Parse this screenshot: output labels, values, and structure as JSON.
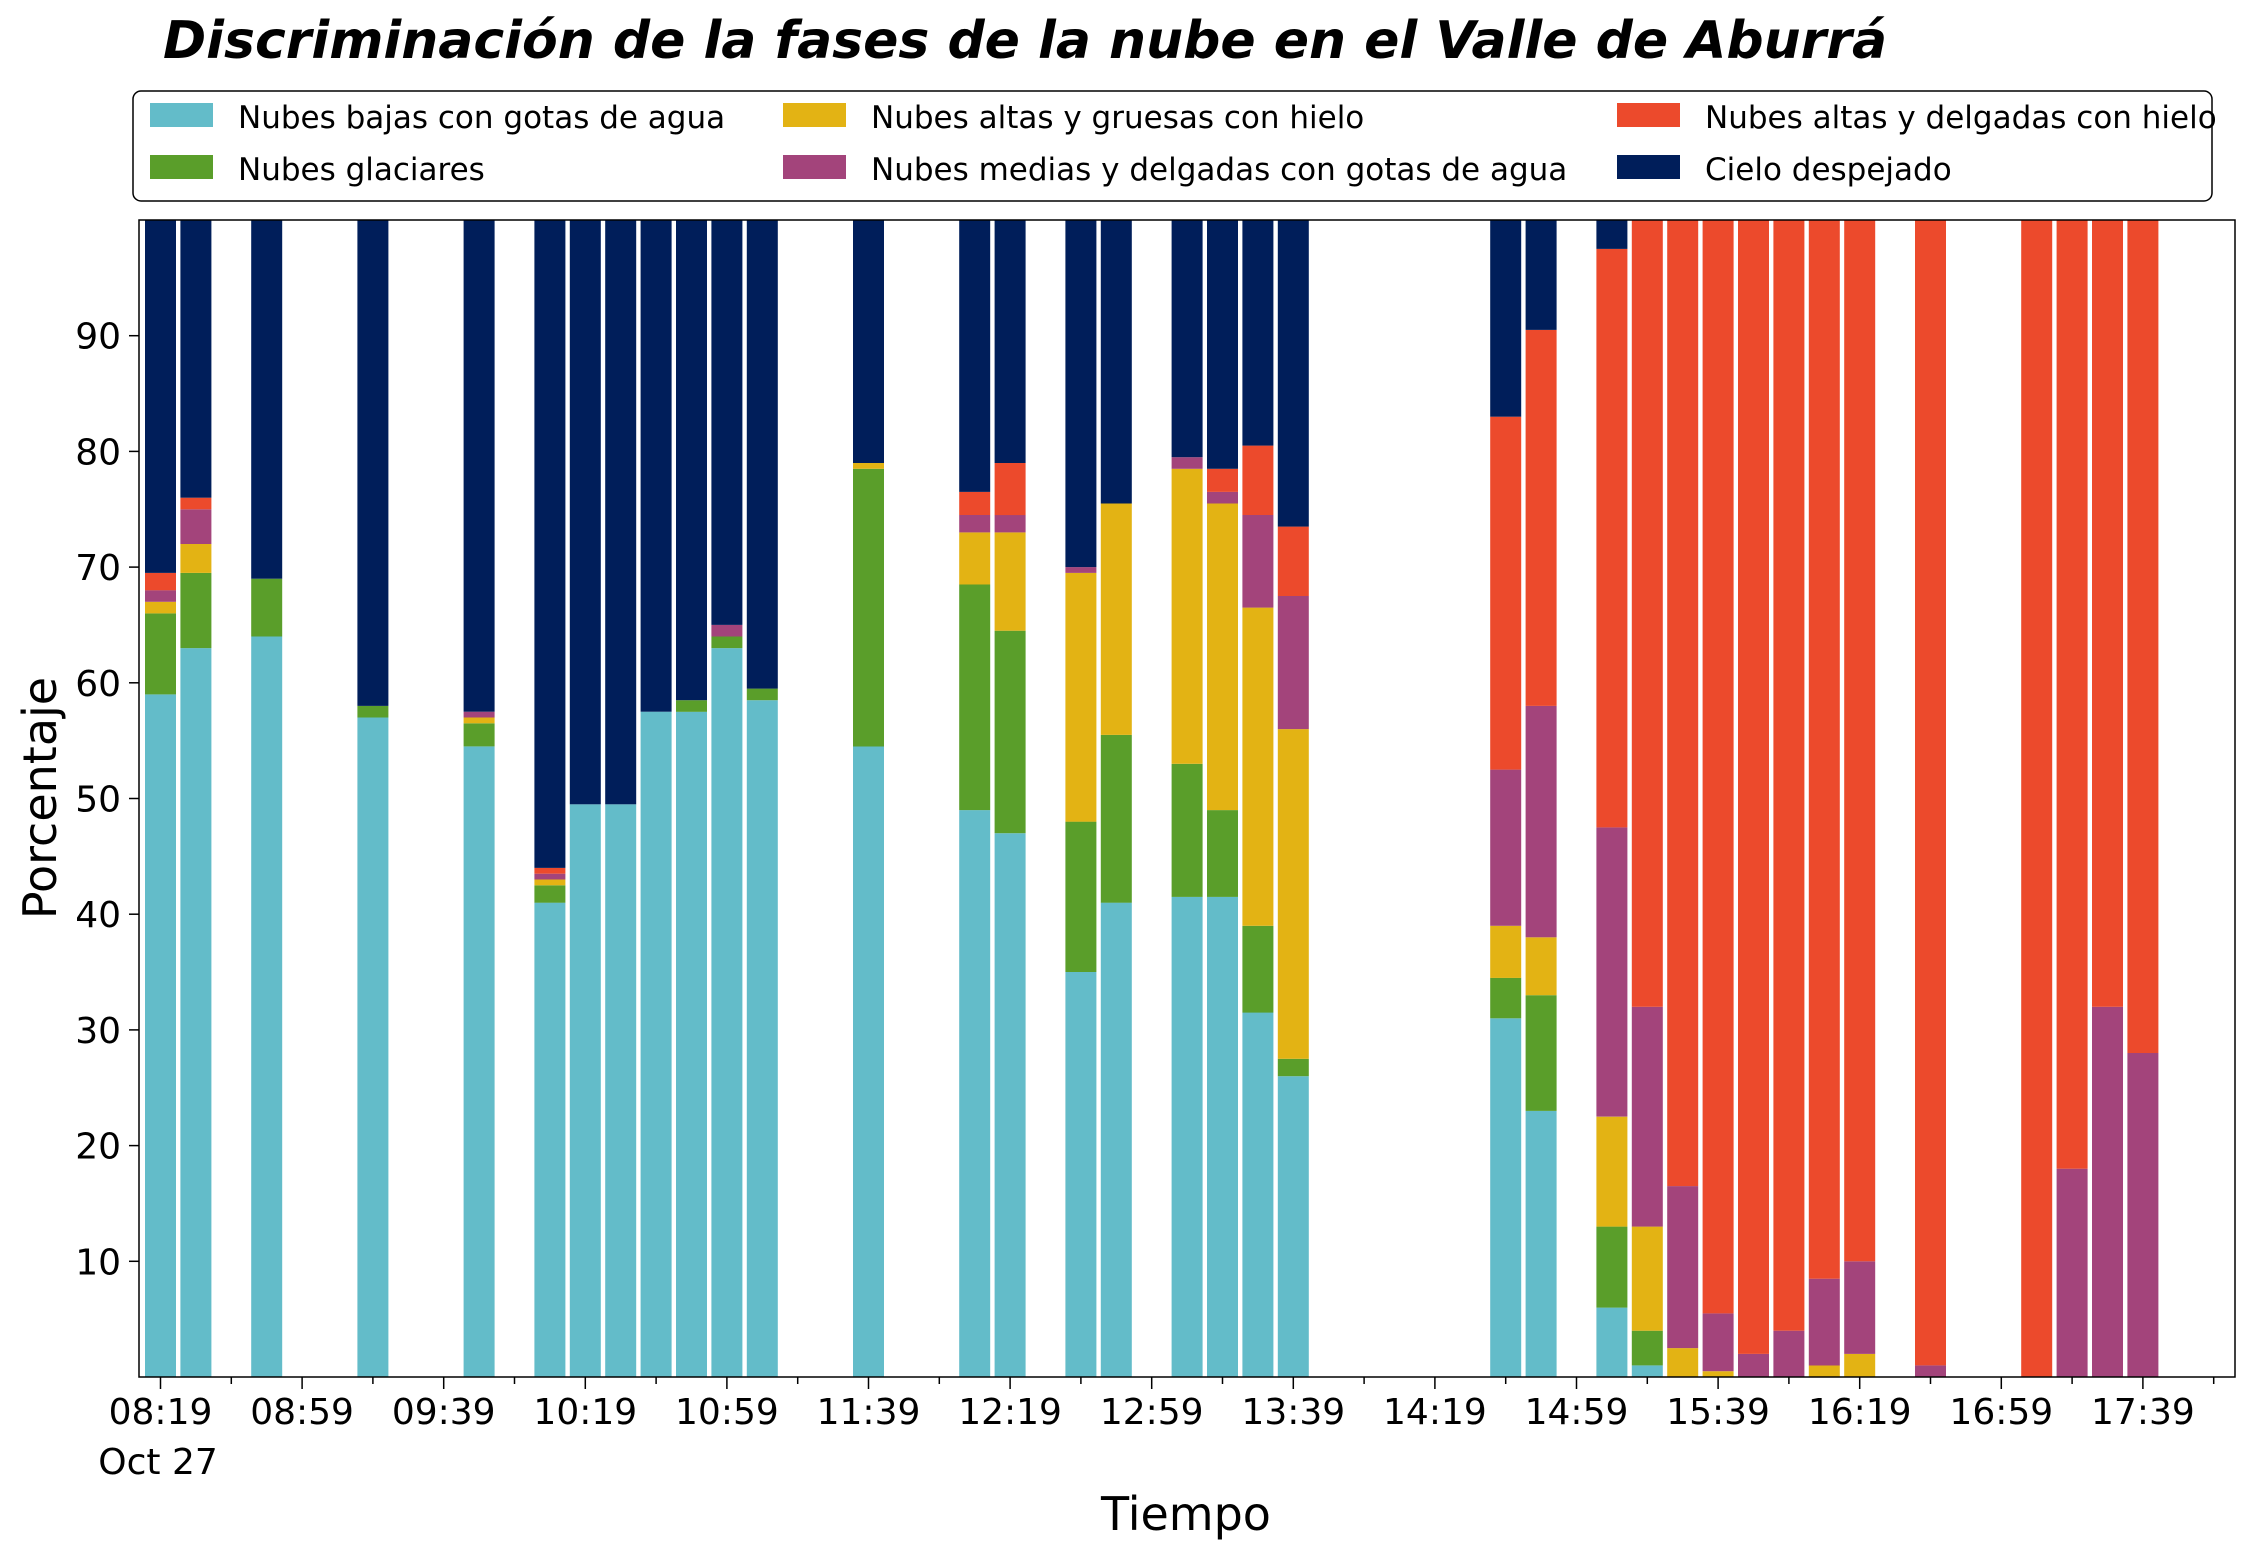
{
  "chart_data": {
    "type": "bar",
    "stacked": true,
    "title": "Discriminación de la fases de la nube en el Valle de Aburrá",
    "xlabel": "Tiempo",
    "ylabel": "Porcentaje",
    "ylim": [
      0,
      100
    ],
    "y_ticks": [
      10,
      20,
      30,
      40,
      50,
      60,
      70,
      80,
      90
    ],
    "x_ticks": [
      "08:19",
      "08:59",
      "09:39",
      "10:19",
      "10:59",
      "11:39",
      "12:19",
      "12:59",
      "13:39",
      "14:19",
      "14:59",
      "15:39",
      "16:19",
      "16:59",
      "17:39"
    ],
    "x_tick_sublabel": "Oct 27",
    "x_start": "08:19",
    "x_end": "17:59",
    "interval_minutes": 10,
    "grid": false,
    "legend_position": "top",
    "x": [
      "08:19",
      "08:29",
      "08:49",
      "09:19",
      "09:49",
      "10:09",
      "10:19",
      "10:29",
      "10:39",
      "10:49",
      "10:59",
      "11:09",
      "11:39",
      "12:09",
      "12:19",
      "12:39",
      "12:49",
      "13:09",
      "13:19",
      "13:29",
      "13:39",
      "14:39",
      "14:49",
      "15:09",
      "15:19",
      "15:29",
      "15:39",
      "15:49",
      "15:59",
      "16:09",
      "16:19",
      "16:39",
      "17:09",
      "17:19",
      "17:29",
      "17:39"
    ],
    "series": [
      {
        "name": "Nubes bajas con gotas de agua",
        "color": "#63BCC9",
        "values": [
          59,
          63,
          64,
          57,
          54.5,
          41,
          49.5,
          49.5,
          57.5,
          57.5,
          63,
          58.5,
          54.5,
          49,
          47,
          35,
          41,
          41.5,
          41.5,
          31.5,
          26,
          31,
          23,
          6,
          1,
          0,
          0,
          0,
          0,
          0,
          0,
          0,
          0,
          0,
          0,
          0
        ]
      },
      {
        "name": "Nubes glaciares",
        "color": "#5A9E2A",
        "values": [
          7,
          6.5,
          5,
          1,
          2,
          1.5,
          0,
          0,
          0,
          1,
          1,
          1,
          24,
          19.5,
          17.5,
          13,
          14.5,
          11.5,
          7.5,
          7.5,
          1.5,
          3.5,
          10,
          7,
          3,
          0,
          0,
          0,
          0,
          0,
          0,
          0,
          0,
          0,
          0,
          0
        ]
      },
      {
        "name": "Nubes altas y gruesas con hielo",
        "color": "#E3B314",
        "values": [
          1,
          2.5,
          0,
          0,
          0.5,
          0.5,
          0,
          0,
          0,
          0,
          0,
          0,
          0.5,
          4.5,
          8.5,
          21.5,
          20,
          25.5,
          26.5,
          27.5,
          28.5,
          4.5,
          5,
          9.5,
          9,
          2.5,
          0.5,
          0,
          0,
          1,
          2,
          0,
          0,
          0,
          0,
          0
        ]
      },
      {
        "name": "Nubes medias y delgadas con gotas de agua",
        "color": "#A3447B",
        "values": [
          1,
          3,
          0,
          0,
          0.5,
          0.5,
          0,
          0,
          0,
          0,
          1,
          0,
          0,
          1.5,
          1.5,
          0.5,
          0,
          1,
          1,
          8,
          11.5,
          13.5,
          20,
          25,
          19,
          14,
          5,
          2,
          4,
          7.5,
          8,
          1,
          0,
          18,
          32,
          28
        ]
      },
      {
        "name": "Nubes altas y delgadas con hielo",
        "color": "#EC4A2C",
        "values": [
          1.5,
          1,
          0,
          0,
          0,
          0.5,
          0,
          0,
          0,
          0,
          0,
          0,
          0,
          2,
          4.5,
          0,
          0,
          0,
          2,
          6,
          6,
          30.5,
          32.5,
          50,
          68,
          83.5,
          94.5,
          98,
          96,
          91.5,
          90,
          99,
          100,
          82,
          68,
          72
        ]
      },
      {
        "name": "Cielo despejado",
        "color": "#001E5A",
        "values": [
          30.5,
          24,
          31,
          42,
          42.5,
          56,
          50.5,
          50.5,
          42.5,
          41.5,
          35,
          40.5,
          21,
          23.5,
          21,
          30,
          24.5,
          20.5,
          21.5,
          19.5,
          26.5,
          17.5,
          9.5,
          2.5,
          0,
          0,
          0,
          0,
          0,
          0,
          0,
          0,
          0,
          0,
          0,
          0
        ]
      }
    ]
  }
}
